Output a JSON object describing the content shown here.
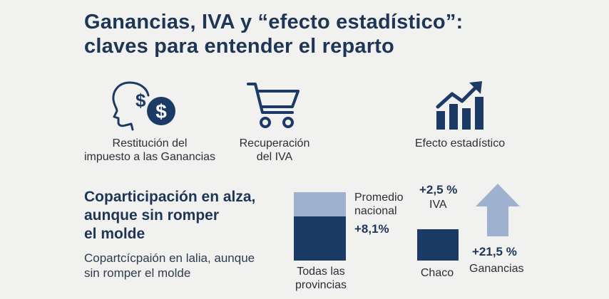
{
  "title": {
    "line1": "Ganancias, IVA y “efecto estadístico”:",
    "line2": "claves para entender el reparto"
  },
  "icons": [
    {
      "icon": "head-dollar-icon",
      "label_line1": "Restitución del",
      "label_line2": "impuesto a las Ganancias"
    },
    {
      "icon": "shopping-cart-icon",
      "label_line1": "Recuperación",
      "label_line2": "del IVA"
    },
    {
      "icon": "growth-chart-icon",
      "label_line1": "Efecto estadístico",
      "label_line2": ""
    }
  ],
  "section": {
    "heading_line1": "Coparticipación en alza,",
    "heading_line2": "aunque sin romper",
    "heading_line3": "el molde",
    "body_line1": "Copartcícpaión en lalia, aunque",
    "body_line2": "sin romper el molde"
  },
  "chart_data": {
    "type": "bar",
    "bars": [
      {
        "name": "Todas las provincias",
        "label_line1": "Todas las",
        "label_line2": "provincias",
        "segments": [
          "light",
          "dark"
        ]
      },
      {
        "name": "Chaco",
        "label_line1": "Chaco",
        "label_line2": ""
      }
    ],
    "annotations": {
      "promedio_line1": "Promedio",
      "promedio_line2": "nacional",
      "promedio_value": "+8,1%",
      "iva_value": "+2,5 %",
      "iva_label": "IVA",
      "ganancias_value": "+21,5 %",
      "ganancias_label": "Ganancias"
    }
  },
  "colors": {
    "navy": "#1c3a66",
    "light_blue": "#9eb1cf",
    "text": "#1e3556"
  }
}
